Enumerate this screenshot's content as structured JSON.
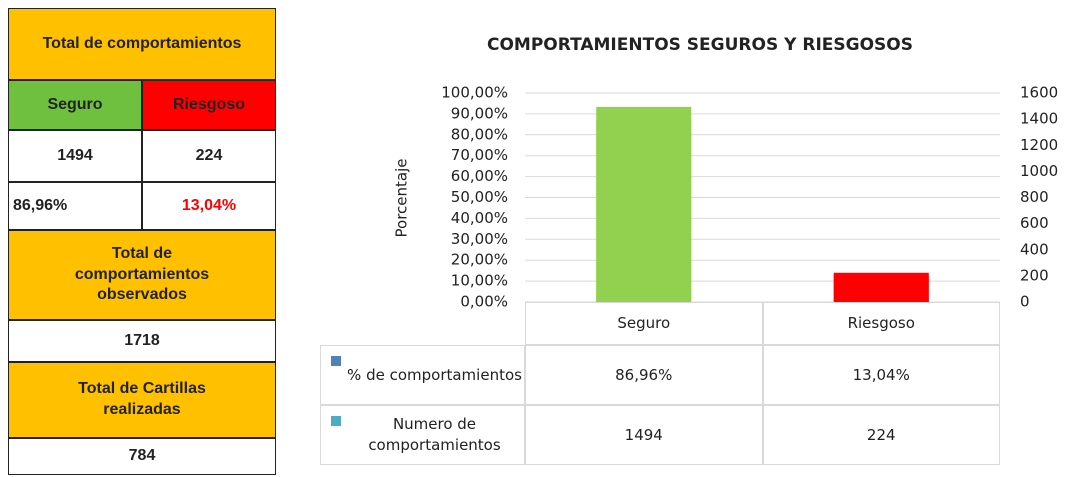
{
  "summary": {
    "total_title": "Total de comportamientos",
    "columns": [
      "Seguro",
      "Riesgoso"
    ],
    "counts": [
      "1494",
      "224"
    ],
    "percents": [
      "86,96%",
      "13,04%"
    ],
    "observed_title": "Total de comportamientos observados",
    "observed": "1718",
    "cartillas_title": "Total de Cartillas realizadas",
    "cartillas": "784"
  },
  "chart_data": {
    "type": "bar",
    "title": "COMPORTAMIENTOS SEGUROS Y RIESGOSOS",
    "y_label": "Porcentaje",
    "categories": [
      "Seguro",
      "Riesgoso"
    ],
    "bar_colors": [
      "#92d050",
      "#ff0000"
    ],
    "series": [
      {
        "name": "% de comportamientos",
        "color": "#4f81bd",
        "values": [
          86.96,
          13.04
        ],
        "value_labels": [
          "86,96%",
          "13,04%"
        ]
      },
      {
        "name": "Numero de comportamientos",
        "color": "#4bacc6",
        "values": [
          1494,
          224
        ],
        "axis": "y2"
      }
    ],
    "ylim": [
      0,
      100
    ],
    "yticks": [
      {
        "value": 0,
        "label": "0,00%"
      },
      {
        "value": 10,
        "label": "10,00%"
      },
      {
        "value": 20,
        "label": "20,00%"
      },
      {
        "value": 30,
        "label": "30,00%"
      },
      {
        "value": 40,
        "label": "40,00%"
      },
      {
        "value": 50,
        "label": "50,00%"
      },
      {
        "value": 60,
        "label": "60,00%"
      },
      {
        "value": 70,
        "label": "70,00%"
      },
      {
        "value": 80,
        "label": "80,00%"
      },
      {
        "value": 90,
        "label": "90,00%"
      },
      {
        "value": 100,
        "label": "100,00%"
      }
    ],
    "y2lim": [
      0,
      1600
    ],
    "y2ticks": [
      0,
      200,
      400,
      600,
      800,
      1000,
      1200,
      1400,
      1600
    ],
    "grid": true
  }
}
